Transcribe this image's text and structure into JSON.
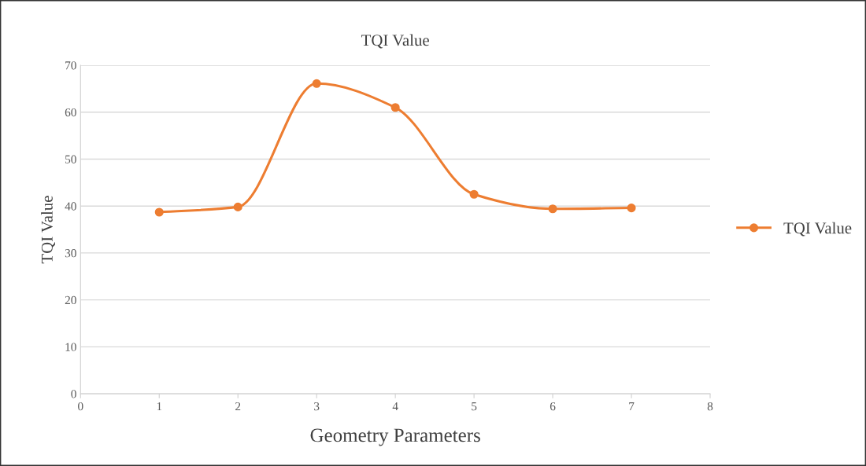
{
  "chart_data": {
    "type": "line",
    "title": "TQI Value",
    "xlabel": "Geometry Parameters",
    "ylabel": "TQI Value",
    "x": [
      1,
      2,
      3,
      4,
      5,
      6,
      7
    ],
    "series": [
      {
        "name": "TQI Value",
        "color": "#ed7d31",
        "values": [
          38.7,
          39.8,
          66.1,
          61.0,
          42.5,
          39.4,
          39.6
        ]
      }
    ],
    "xlim": [
      0,
      8
    ],
    "xticks": [
      0,
      1,
      2,
      3,
      4,
      5,
      6,
      7,
      8
    ],
    "ylim": [
      0,
      70
    ],
    "yticks": [
      0,
      10,
      20,
      30,
      40,
      50,
      60,
      70
    ],
    "grid": "y",
    "legend": "right",
    "marker": "circle",
    "line_style": "solid"
  }
}
